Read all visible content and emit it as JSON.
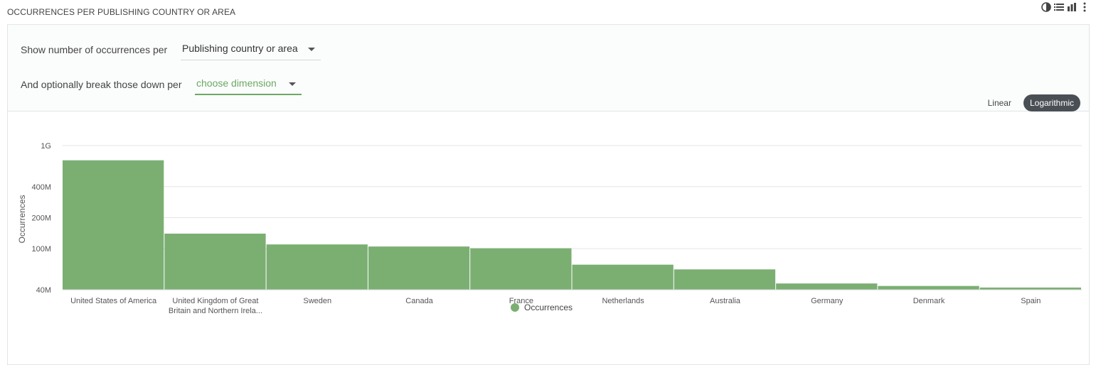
{
  "page": {
    "title": "OCCURRENCES PER PUBLISHING COUNTRY OR AREA"
  },
  "toolbar": {
    "icons": [
      "pie-chart-icon",
      "list-icon",
      "bar-chart-icon",
      "more-vert-icon"
    ]
  },
  "filters": {
    "primary_label": "Show number of occurrences per",
    "primary_value": "Publishing country or area",
    "secondary_label": "And optionally break those down per",
    "secondary_value": "choose dimension"
  },
  "scale": {
    "linear_label": "Linear",
    "log_label": "Logarithmic",
    "active": "Logarithmic"
  },
  "colors": {
    "bar": "#7baf72",
    "accent": "#6ea864",
    "toggle_active": "#4a4f56"
  },
  "chart_data": {
    "type": "bar",
    "ylabel": "Occurrences",
    "xlabel": "",
    "scale": "log",
    "yticks": [
      {
        "value": 40000000,
        "label": "40M"
      },
      {
        "value": 100000000,
        "label": "100M"
      },
      {
        "value": 200000000,
        "label": "200M"
      },
      {
        "value": 400000000,
        "label": "400M"
      },
      {
        "value": 1000000000,
        "label": "1G"
      }
    ],
    "ylim": [
      40000000,
      1000000000
    ],
    "categories": [
      [
        "United States of America"
      ],
      [
        "United Kingdom of Great",
        "Britain and Northern Irela..."
      ],
      [
        "Sweden"
      ],
      [
        "Canada"
      ],
      [
        "France"
      ],
      [
        "Netherlands"
      ],
      [
        "Australia"
      ],
      [
        "Germany"
      ],
      [
        "Denmark"
      ],
      [
        "Spain"
      ]
    ],
    "series": [
      {
        "name": "Occurrences",
        "values": [
          720000000,
          140000000,
          110000000,
          105000000,
          101000000,
          70000000,
          63000000,
          46000000,
          43500000,
          42000000
        ]
      }
    ],
    "legend": "bottom-center",
    "grid": true
  }
}
